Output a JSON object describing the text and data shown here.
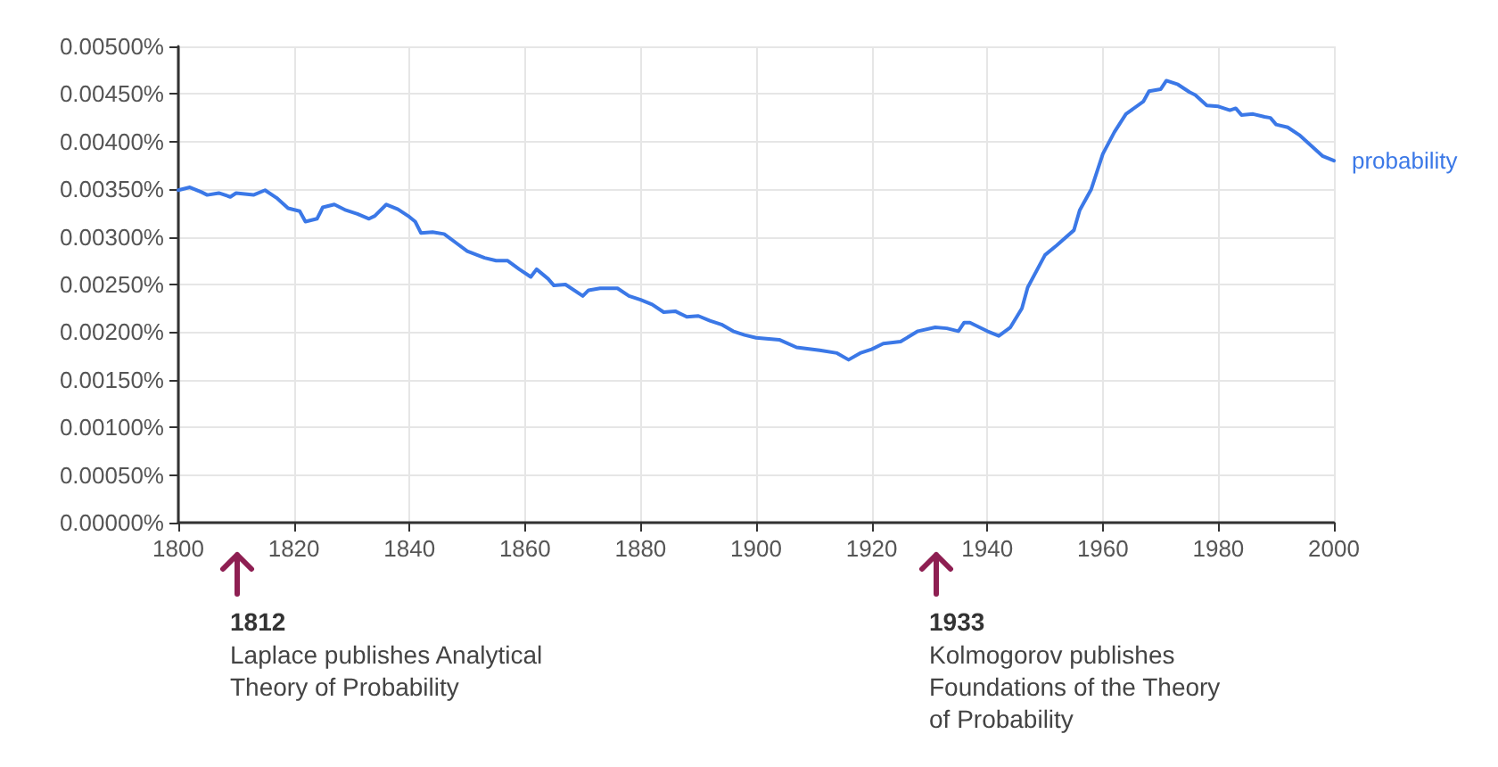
{
  "chart_data": {
    "type": "line",
    "x": [
      1800,
      1802,
      1804,
      1805,
      1807,
      1809,
      1810,
      1813,
      1815,
      1817,
      1819,
      1821,
      1822,
      1824,
      1825,
      1827,
      1829,
      1831,
      1833,
      1834,
      1836,
      1838,
      1840,
      1841,
      1842,
      1844,
      1846,
      1848,
      1850,
      1853,
      1855,
      1857,
      1859,
      1861,
      1862,
      1864,
      1865,
      1867,
      1870,
      1871,
      1873,
      1876,
      1878,
      1880,
      1882,
      1884,
      1886,
      1888,
      1890,
      1892,
      1894,
      1896,
      1898,
      1900,
      1904,
      1907,
      1911,
      1914,
      1916,
      1918,
      1920,
      1922,
      1925,
      1928,
      1931,
      1933,
      1935,
      1936,
      1937,
      1940,
      1942,
      1944,
      1946,
      1947,
      1950,
      1952,
      1955,
      1956,
      1958,
      1960,
      1962,
      1964,
      1967,
      1968,
      1970,
      1971,
      1973,
      1975,
      1976,
      1978,
      1980,
      1982,
      1983,
      1984,
      1986,
      1988,
      1989,
      1990,
      1992,
      1994,
      1996,
      1998,
      2000
    ],
    "series": [
      {
        "name": "probability",
        "color": "#3b78e7",
        "values": [
          0.00349,
          0.00352,
          0.00347,
          0.00344,
          0.00346,
          0.00342,
          0.00346,
          0.00344,
          0.00349,
          0.00341,
          0.0033,
          0.00327,
          0.00316,
          0.00319,
          0.00331,
          0.00334,
          0.00328,
          0.00324,
          0.00319,
          0.00322,
          0.00334,
          0.00329,
          0.00321,
          0.00316,
          0.00304,
          0.00305,
          0.00303,
          0.00294,
          0.00285,
          0.00278,
          0.00275,
          0.00275,
          0.00266,
          0.00258,
          0.00266,
          0.00256,
          0.00249,
          0.0025,
          0.00238,
          0.00244,
          0.00246,
          0.00246,
          0.00238,
          0.00234,
          0.00229,
          0.00221,
          0.00222,
          0.00216,
          0.00217,
          0.00212,
          0.00208,
          0.00201,
          0.00197,
          0.00194,
          0.00192,
          0.00184,
          0.00181,
          0.00178,
          0.00171,
          0.00178,
          0.00182,
          0.00188,
          0.0019,
          0.00201,
          0.00205,
          0.00204,
          0.00201,
          0.0021,
          0.0021,
          0.00201,
          0.00196,
          0.00205,
          0.00225,
          0.00247,
          0.00281,
          0.00291,
          0.00307,
          0.00328,
          0.0035,
          0.00387,
          0.0041,
          0.00429,
          0.00442,
          0.00453,
          0.00455,
          0.00464,
          0.0046,
          0.00452,
          0.00449,
          0.00438,
          0.00437,
          0.00433,
          0.00435,
          0.00428,
          0.00429,
          0.00426,
          0.00425,
          0.00418,
          0.00415,
          0.00407,
          0.00396,
          0.00385,
          0.0038
        ]
      }
    ],
    "xlim": [
      1800,
      2000
    ],
    "xticks": [
      1800,
      1820,
      1840,
      1860,
      1880,
      1900,
      1920,
      1940,
      1960,
      1980,
      2000
    ],
    "ylim": [
      0,
      0.005
    ],
    "yticks": [
      {
        "value": 0,
        "label": "0.00000%"
      },
      {
        "value": 0.0005,
        "label": "0.00050%"
      },
      {
        "value": 0.001,
        "label": "0.00100%"
      },
      {
        "value": 0.0015,
        "label": "0.00150%"
      },
      {
        "value": 0.002,
        "label": "0.00200%"
      },
      {
        "value": 0.0025,
        "label": "0.00250%"
      },
      {
        "value": 0.003,
        "label": "0.00300%"
      },
      {
        "value": 0.0035,
        "label": "0.00350%"
      },
      {
        "value": 0.004,
        "label": "0.00400%"
      },
      {
        "value": 0.0045,
        "label": "0.00450%"
      },
      {
        "value": 0.005,
        "label": "0.00500%"
      }
    ],
    "grid": true,
    "legend": false,
    "marker": "none",
    "line_style": "solid",
    "annotations": [
      "1812\nLaplace publishes Analytical\nTheory of Probability",
      "1933\nKolmogorov publishes\nFoundations of the Theory\nof Probability"
    ]
  }
}
